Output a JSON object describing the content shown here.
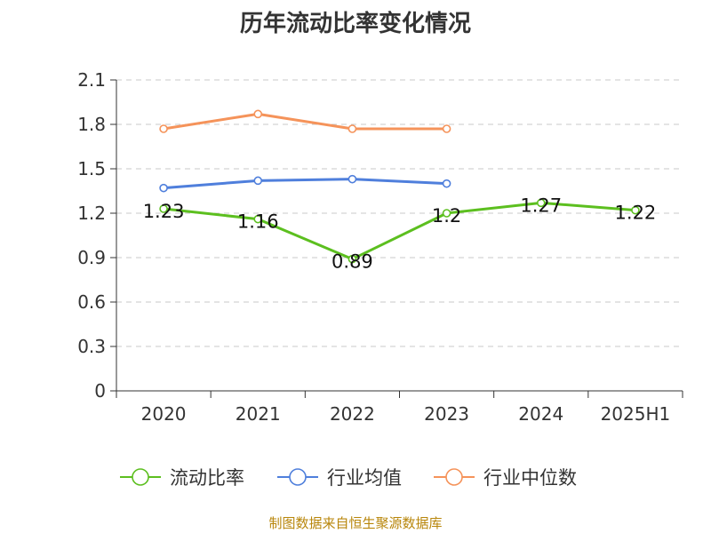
{
  "title": "历年流动比率变化情况",
  "source": "制图数据来自恒生聚源数据库",
  "chart_data": {
    "type": "line",
    "title": "历年流动比率变化情况",
    "categories": [
      "2020",
      "2021",
      "2022",
      "2023",
      "2024",
      "2025H1"
    ],
    "ylim": [
      0,
      2.1
    ],
    "yticks": [
      "0",
      "0.3",
      "0.6",
      "0.9",
      "1.2",
      "1.5",
      "1.8",
      "2.1"
    ],
    "grid": true,
    "legend_position": "bottom",
    "series": [
      {
        "name": "流动比率",
        "color": "#5cbf1f",
        "values": [
          1.23,
          1.16,
          0.89,
          1.2,
          1.27,
          1.22
        ],
        "labels": [
          "1.23",
          "1.16",
          "0.89",
          "1.2",
          "1.27",
          "1.22"
        ],
        "show_labels": true
      },
      {
        "name": "行业均值",
        "color": "#4f7fdc",
        "values": [
          1.37,
          1.42,
          1.43,
          1.4,
          null,
          null
        ],
        "show_labels": false
      },
      {
        "name": "行业中位数",
        "color": "#f5935a",
        "values": [
          1.77,
          1.87,
          1.77,
          1.77,
          null,
          null
        ],
        "show_labels": false
      }
    ]
  }
}
